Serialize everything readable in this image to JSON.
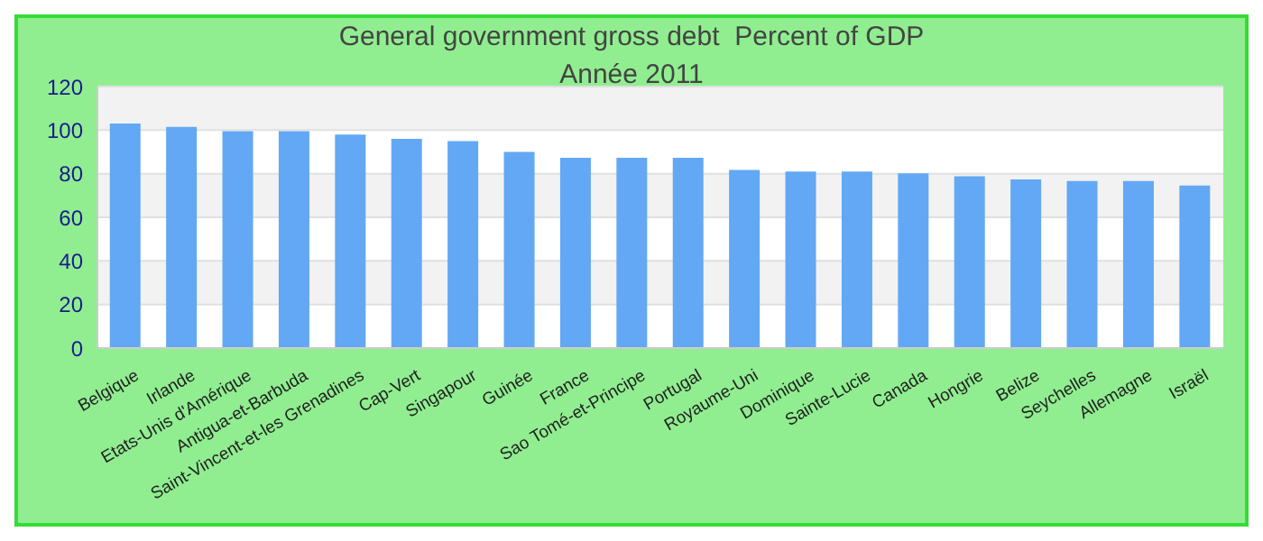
{
  "chart_data": {
    "type": "bar",
    "title": "General government gross debt  Percent of GDP",
    "subtitle": "Année 2011",
    "categories": [
      "Belgique",
      "Irlande",
      "Etats-Unis d'Amérique",
      "Antigua-et-Barbuda",
      "Saint-Vincent-et-les Grenadines",
      "Cap-Vert",
      "Singapour",
      "Guinée",
      "France",
      "Sao Tomé-et-Principe",
      "Portugal",
      "Royaume-Uni",
      "Dominique",
      "Sainte-Lucie",
      "Canada",
      "Hongrie",
      "Belize",
      "Seychelles",
      "Allemagne",
      "Israël"
    ],
    "values": [
      103,
      101.5,
      99.5,
      99.5,
      98,
      96,
      95,
      90,
      87.3,
      87.3,
      87.3,
      81.7,
      81,
      81,
      80.2,
      78.8,
      77.4,
      76.7,
      76.7,
      74.6
    ],
    "color": "#62a8f4",
    "ylim": [
      0,
      120
    ],
    "yticks": [
      0,
      20,
      40,
      60,
      80,
      100,
      120
    ],
    "grid": "y",
    "legend": false
  }
}
